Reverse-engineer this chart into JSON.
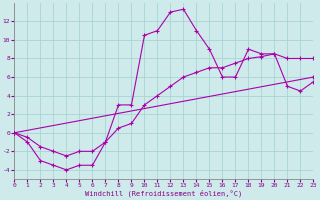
{
  "xlabel": "Windchill (Refroidissement éolien,°C)",
  "background_color": "#ceeaea",
  "grid_color": "#a8d4d4",
  "line_color": "#aa00aa",
  "xlim": [
    0,
    23
  ],
  "ylim": [
    -5,
    14
  ],
  "xticks": [
    0,
    1,
    2,
    3,
    4,
    5,
    6,
    7,
    8,
    9,
    10,
    11,
    12,
    13,
    14,
    15,
    16,
    17,
    18,
    19,
    20,
    21,
    22,
    23
  ],
  "yticks": [
    -4,
    -2,
    0,
    2,
    4,
    6,
    8,
    10,
    12
  ],
  "line1_x": [
    0,
    1,
    2,
    3,
    4,
    5,
    6,
    7,
    8,
    9,
    10,
    11,
    12,
    13,
    14,
    15,
    16,
    17,
    18,
    19,
    20,
    21,
    22,
    23
  ],
  "line1_y": [
    0,
    -1,
    -3,
    -3.5,
    -4,
    -3.5,
    -3.5,
    -1,
    3,
    3,
    10.5,
    11,
    13,
    13.3,
    11,
    9,
    6,
    6,
    9,
    8.5,
    8.5,
    5,
    4.5,
    5.5
  ],
  "line2_x": [
    0,
    23
  ],
  "line2_y": [
    0,
    6
  ],
  "line3_x": [
    0,
    1,
    2,
    3,
    4,
    5,
    6,
    7,
    8,
    9,
    10,
    11,
    12,
    13,
    14,
    15,
    16,
    17,
    18,
    19,
    20,
    21,
    22,
    23
  ],
  "line3_y": [
    0,
    -0.5,
    -1.5,
    -2,
    -2.5,
    -2,
    -2,
    -1,
    0.5,
    1,
    3,
    4,
    5,
    6,
    6.5,
    7,
    7,
    7.5,
    8,
    8.2,
    8.5,
    8,
    8,
    8
  ]
}
